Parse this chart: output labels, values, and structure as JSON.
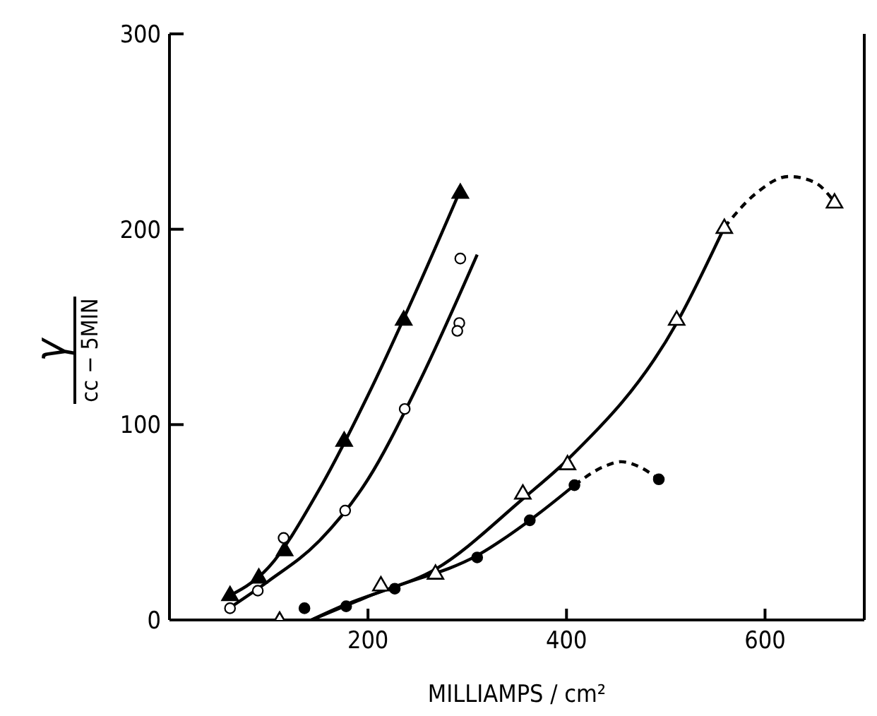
{
  "chart_data": {
    "type": "scatter",
    "xlabel": "MILLIAMPS / cm²",
    "ylabel": "γ\ncc − 5MIN",
    "xlim": [
      0,
      700
    ],
    "ylim": [
      0,
      300
    ],
    "xticks": [
      200,
      400,
      600
    ],
    "yticks": [
      0,
      100,
      200,
      300
    ],
    "grid": false,
    "legend": false,
    "series": [
      {
        "type": "line",
        "color": "#000000",
        "marker": "none",
        "line_style": "solid",
        "x": [
          55,
          100,
          150,
          200,
          250,
          293
        ],
        "values": [
          11,
          27,
          66,
          115,
          170,
          220
        ]
      },
      {
        "type": "line",
        "color": "#000000",
        "marker": "none",
        "line_style": "solid",
        "x": [
          57,
          100,
          150,
          200,
          250,
          310
        ],
        "values": [
          5,
          20,
          40,
          72,
          120,
          187
        ]
      },
      {
        "type": "line",
        "color": "#000000",
        "marker": "none",
        "line_style": "solid",
        "x": [
          143,
          200,
          268,
          356,
          401,
          511,
          559
        ],
        "values": [
          0,
          12,
          26,
          62,
          82,
          152,
          201
        ]
      },
      {
        "type": "line",
        "color": "#000000",
        "marker": "none",
        "line_style": "dashed",
        "x": [
          559,
          590,
          624,
          650,
          670
        ],
        "values": [
          201,
          218,
          227,
          224,
          214
        ]
      },
      {
        "type": "line",
        "color": "#000000",
        "marker": "none",
        "line_style": "solid",
        "x": [
          143,
          178,
          227,
          310,
          363,
          408
        ],
        "values": [
          0,
          8,
          17,
          33,
          51,
          69
        ]
      },
      {
        "type": "line",
        "color": "#000000",
        "marker": "none",
        "line_style": "dashed",
        "x": [
          408,
          440,
          455,
          475,
          493
        ],
        "values": [
          69,
          79,
          81,
          78,
          72
        ]
      },
      {
        "color": "#000000",
        "marker": "triangle",
        "x": [
          61,
          90,
          116,
          176,
          236,
          293
        ],
        "values": [
          13,
          22,
          36,
          92,
          154,
          219
        ]
      },
      {
        "color": "#ffffff",
        "marker": "circle",
        "x": [
          61,
          89,
          115,
          177,
          237,
          293,
          292,
          290
        ],
        "values": [
          6,
          15,
          42,
          56,
          108,
          185,
          152,
          148
        ]
      },
      {
        "color": "#ffffff",
        "marker": "triangle",
        "x": [
          111,
          213,
          268,
          356,
          401,
          511,
          559,
          670
        ],
        "values": [
          0,
          18,
          24,
          65,
          80,
          154,
          201,
          214
        ]
      },
      {
        "color": "#000000",
        "marker": "circle",
        "x": [
          136,
          178,
          227,
          310,
          363,
          408,
          493
        ],
        "values": [
          6,
          7,
          16,
          32,
          51,
          69,
          72
        ]
      }
    ]
  }
}
